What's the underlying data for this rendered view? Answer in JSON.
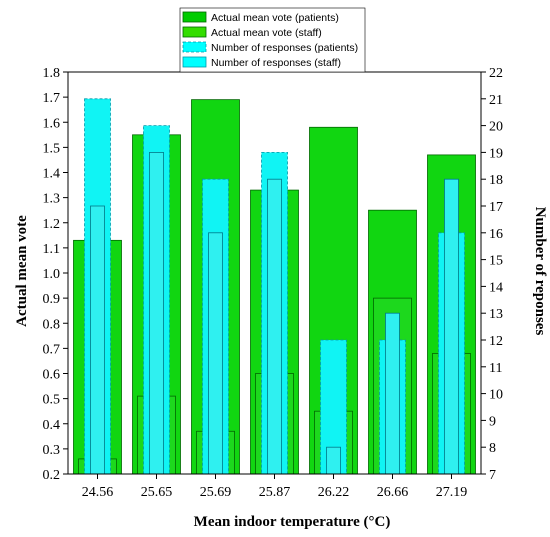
{
  "chart_data": {
    "type": "bar",
    "categories": [
      "24.56",
      "25.65",
      "25.69",
      "25.87",
      "26.22",
      "26.66",
      "27.19"
    ],
    "xlabel": "Mean indoor temperature (°C)",
    "ylabel_left": "Actual mean vote",
    "ylabel_right": "Number of reponses",
    "ylim_left": [
      0.2,
      1.8
    ],
    "ylim_right": [
      7,
      22
    ],
    "yticks_left": [
      "0.2",
      "0.3",
      "0.4",
      "0.5",
      "0.6",
      "0.7",
      "0.8",
      "0.9",
      "1.0",
      "1.1",
      "1.2",
      "1.3",
      "1.4",
      "1.5",
      "1.6",
      "1.7",
      "1.8"
    ],
    "yticks_right": [
      "7",
      "8",
      "9",
      "10",
      "11",
      "12",
      "13",
      "14",
      "15",
      "16",
      "17",
      "18",
      "19",
      "20",
      "21",
      "22"
    ],
    "legend_position": "top",
    "series": [
      {
        "name": "Actual mean vote (patients)",
        "axis": "left",
        "color": "#00cc00",
        "values": [
          1.13,
          1.55,
          1.69,
          1.33,
          1.58,
          1.25,
          1.47
        ]
      },
      {
        "name": "Actual mean vote (staff)",
        "axis": "left",
        "color": "#33dd00",
        "values": [
          0.26,
          0.51,
          0.37,
          0.6,
          0.45,
          0.9,
          0.68
        ]
      },
      {
        "name": "Number of responses (patients)",
        "axis": "right",
        "color": "#00ffff",
        "values": [
          21,
          20,
          18,
          19,
          12,
          12,
          16
        ]
      },
      {
        "name": "Number of responses (staff)",
        "axis": "right",
        "color": "#00ffff",
        "values": [
          17,
          19,
          16,
          18,
          8,
          13,
          18
        ]
      }
    ]
  }
}
